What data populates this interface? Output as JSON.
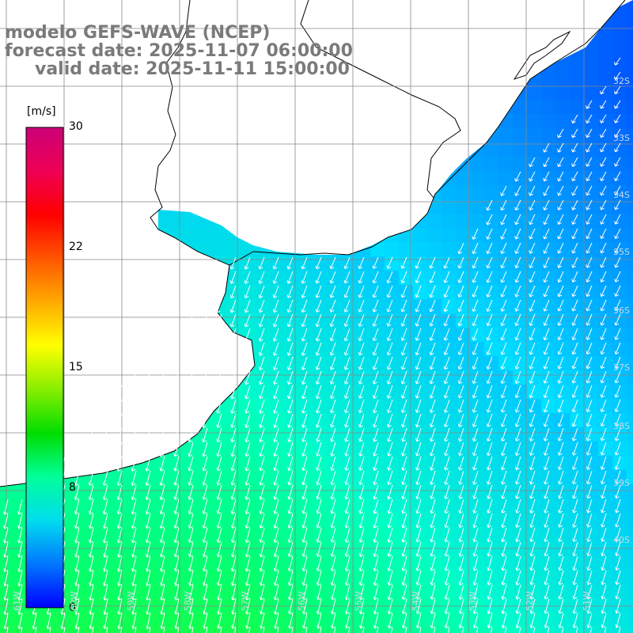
{
  "title": {
    "model": "modelo GEFS-WAVE (NCEP)",
    "forecast": "forecast date: 2025-11-07 06:00:00",
    "valid": "valid date: 2025-11-11 15:00:00"
  },
  "colorbar": {
    "unit": "[m/s]",
    "ticks": [
      "30",
      "22",
      "15",
      "8",
      "0"
    ],
    "tick_values": [
      30,
      22,
      15,
      8,
      0
    ],
    "min": 0,
    "max": 30,
    "colors": [
      "#0000ff",
      "#0077ff",
      "#00ddee",
      "#00ff99",
      "#00dd00",
      "#88ee00",
      "#ffff00",
      "#ffaa00",
      "#ff5500",
      "#ff0000",
      "#ee0055",
      "#cc0077"
    ]
  },
  "map": {
    "lat_labels": [
      "32S",
      "33S",
      "34S",
      "35S",
      "36S",
      "37S",
      "38S",
      "39S",
      "40S"
    ],
    "lon_labels": [
      "61W",
      "60W",
      "59W",
      "58W",
      "57W",
      "56W",
      "55W",
      "54W",
      "53W",
      "52W",
      "51W"
    ],
    "land_color": "#ffffff",
    "coast_color": "#000000",
    "grid_color": "#888888"
  }
}
